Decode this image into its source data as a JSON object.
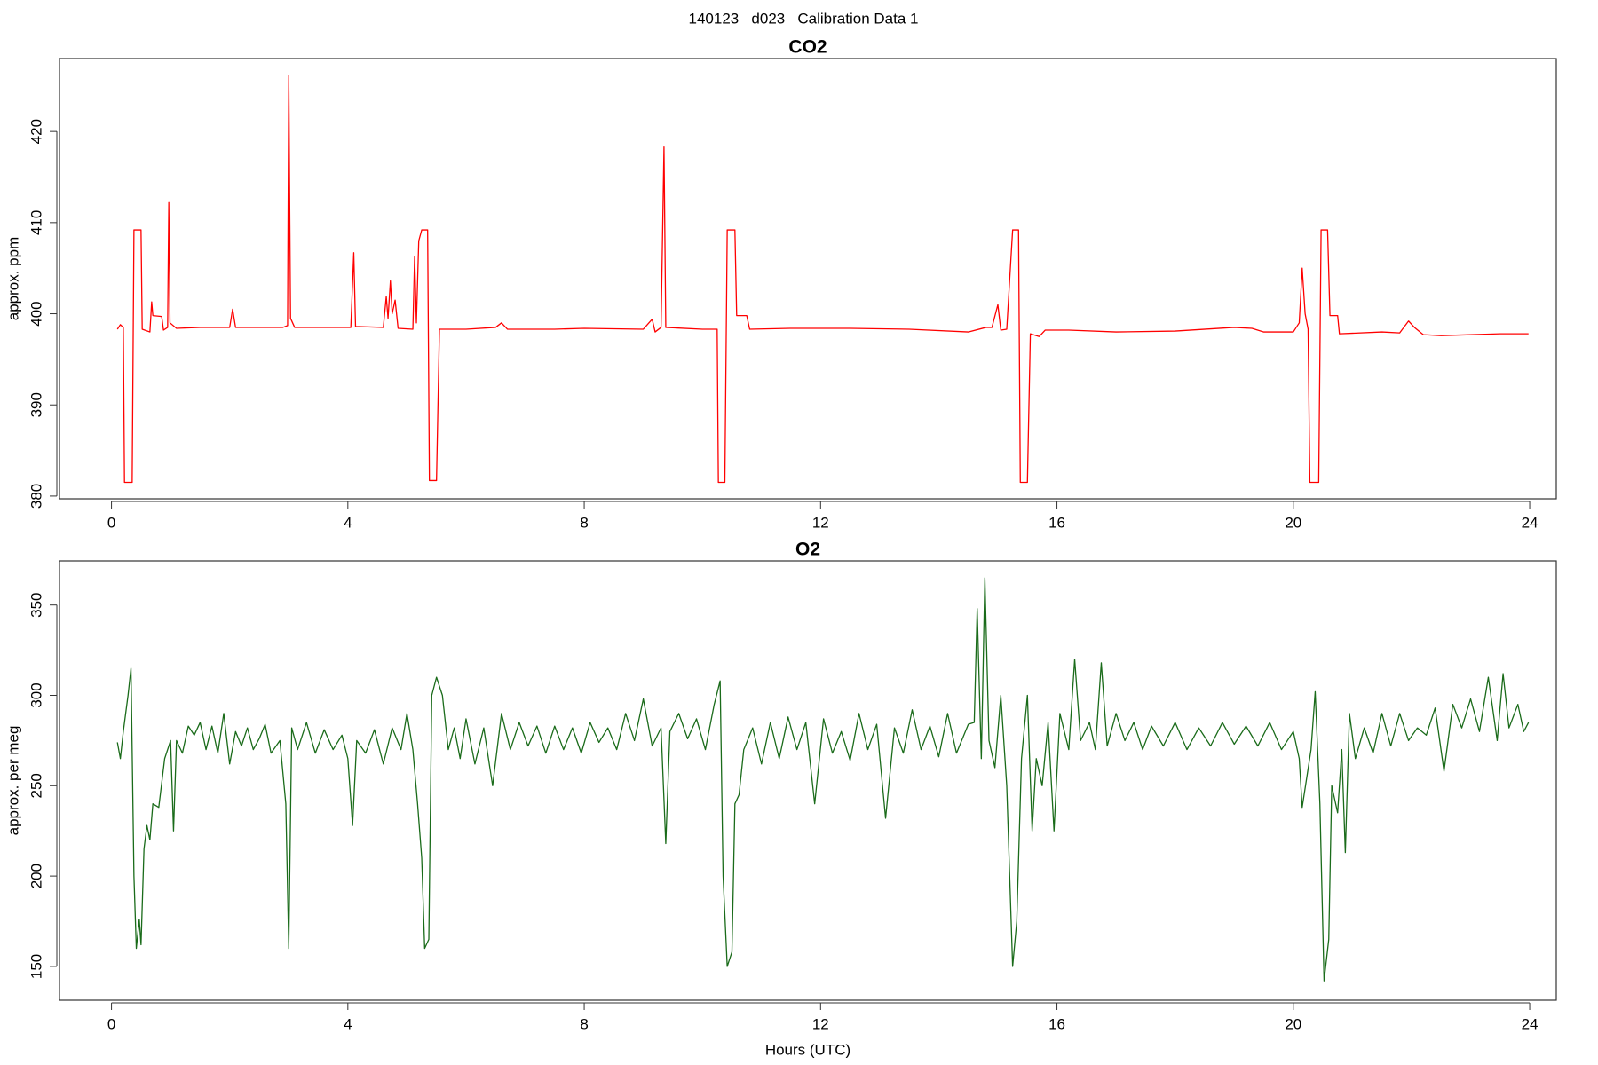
{
  "title": "140123   d023   Calibration Data 1",
  "chart_data": [
    {
      "type": "line",
      "title": "CO2",
      "ylabel": "approx. ppm",
      "color": "#ff0000",
      "xlim": [
        -0.88,
        24.45
      ],
      "ylim": [
        379.7,
        428.0
      ],
      "xticks": [
        0,
        4,
        8,
        12,
        16,
        20,
        24
      ],
      "yticks": [
        380,
        390,
        400,
        410,
        420
      ],
      "x": [
        0.1,
        0.15,
        0.2,
        0.22,
        0.35,
        0.38,
        0.5,
        0.52,
        0.65,
        0.68,
        0.7,
        0.85,
        0.88,
        0.95,
        0.97,
        0.99,
        1.1,
        1.5,
        2.0,
        2.05,
        2.1,
        2.9,
        2.98,
        3.0,
        3.03,
        3.1,
        4.05,
        4.1,
        4.13,
        4.6,
        4.65,
        4.68,
        4.72,
        4.75,
        4.8,
        4.85,
        5.1,
        5.13,
        5.16,
        5.2,
        5.25,
        5.35,
        5.38,
        5.5,
        5.55,
        6.0,
        6.5,
        6.6,
        6.7,
        7.5,
        8.0,
        9.0,
        9.15,
        9.2,
        9.3,
        9.35,
        9.38,
        10.0,
        10.25,
        10.27,
        10.38,
        10.42,
        10.55,
        10.58,
        10.75,
        10.8,
        11.5,
        12.5,
        13.5,
        14.5,
        14.8,
        14.9,
        15.0,
        15.05,
        15.15,
        15.25,
        15.35,
        15.38,
        15.5,
        15.55,
        15.7,
        15.8,
        16.2,
        17,
        18,
        19,
        19.3,
        19.5,
        20.0,
        20.1,
        20.15,
        20.2,
        20.25,
        20.28,
        20.43,
        20.47,
        20.58,
        20.62,
        20.75,
        20.78,
        21.5,
        21.8,
        21.95,
        22.05,
        22.2,
        22.5,
        23.0,
        23.5,
        23.98
      ],
      "values": [
        398.3,
        398.8,
        398.5,
        381.5,
        381.5,
        409.2,
        409.2,
        398.3,
        398.0,
        401.3,
        399.8,
        399.7,
        398.2,
        398.5,
        412.2,
        399.0,
        398.4,
        398.5,
        398.5,
        400.5,
        398.5,
        398.5,
        398.7,
        426.2,
        399.5,
        398.5,
        398.5,
        406.7,
        398.6,
        398.5,
        401.9,
        399.5,
        403.6,
        400,
        401.5,
        398.4,
        398.3,
        406.3,
        399,
        408,
        409.2,
        409.2,
        381.7,
        381.7,
        398.3,
        398.3,
        398.5,
        399.0,
        398.3,
        398.3,
        398.4,
        398.3,
        399.4,
        398.0,
        398.5,
        418.3,
        398.5,
        398.3,
        398.3,
        381.5,
        381.5,
        409.2,
        409.2,
        399.8,
        399.8,
        398.3,
        398.4,
        398.4,
        398.3,
        398.0,
        398.5,
        398.5,
        401.0,
        398.2,
        398.3,
        409.2,
        409.2,
        381.5,
        381.5,
        397.8,
        397.5,
        398.2,
        398.2,
        398.0,
        398.1,
        398.5,
        398.4,
        398.0,
        398.0,
        399.0,
        405.0,
        400,
        398.3,
        381.5,
        381.5,
        409.2,
        409.2,
        399.8,
        399.8,
        397.8,
        398.0,
        397.9,
        399.2,
        398.5,
        397.7,
        397.6,
        397.7,
        397.8,
        397.8
      ]
    },
    {
      "type": "line",
      "title": "O2",
      "ylabel": "approx. per meg",
      "xlabel": "Hours (UTC)",
      "color": "#1a6b1a",
      "xlim": [
        -0.88,
        24.45
      ],
      "ylim": [
        131.3,
        374.4
      ],
      "xticks": [
        0,
        4,
        8,
        12,
        16,
        20,
        24
      ],
      "yticks": [
        150,
        200,
        250,
        300,
        350
      ],
      "x": [
        0.1,
        0.15,
        0.2,
        0.28,
        0.33,
        0.38,
        0.42,
        0.47,
        0.5,
        0.55,
        0.6,
        0.65,
        0.7,
        0.8,
        0.9,
        1.0,
        1.05,
        1.1,
        1.2,
        1.3,
        1.4,
        1.5,
        1.6,
        1.7,
        1.8,
        1.9,
        2.0,
        2.1,
        2.2,
        2.3,
        2.4,
        2.5,
        2.6,
        2.7,
        2.85,
        2.95,
        3.0,
        3.05,
        3.15,
        3.3,
        3.45,
        3.6,
        3.75,
        3.9,
        4.0,
        4.08,
        4.15,
        4.3,
        4.45,
        4.6,
        4.75,
        4.9,
        5.0,
        5.1,
        5.18,
        5.25,
        5.3,
        5.37,
        5.42,
        5.5,
        5.6,
        5.7,
        5.8,
        5.9,
        6.0,
        6.15,
        6.3,
        6.45,
        6.6,
        6.75,
        6.9,
        7.05,
        7.2,
        7.35,
        7.5,
        7.65,
        7.8,
        7.95,
        8.1,
        8.25,
        8.4,
        8.55,
        8.7,
        8.85,
        9.0,
        9.15,
        9.3,
        9.38,
        9.45,
        9.6,
        9.75,
        9.9,
        10.05,
        10.2,
        10.3,
        10.35,
        10.42,
        10.5,
        10.55,
        10.62,
        10.7,
        10.85,
        11.0,
        11.15,
        11.3,
        11.45,
        11.6,
        11.75,
        11.9,
        12.05,
        12.2,
        12.35,
        12.5,
        12.65,
        12.8,
        12.95,
        13.1,
        13.25,
        13.4,
        13.55,
        13.7,
        13.85,
        14.0,
        14.15,
        14.3,
        14.5,
        14.6,
        14.65,
        14.72,
        14.78,
        14.85,
        14.95,
        15.05,
        15.15,
        15.25,
        15.32,
        15.4,
        15.5,
        15.58,
        15.65,
        15.75,
        15.85,
        15.95,
        16.05,
        16.2,
        16.3,
        16.4,
        16.55,
        16.65,
        16.75,
        16.85,
        17.0,
        17.15,
        17.3,
        17.45,
        17.6,
        17.8,
        18.0,
        18.2,
        18.4,
        18.6,
        18.8,
        19.0,
        19.2,
        19.4,
        19.6,
        19.8,
        20.0,
        20.1,
        20.15,
        20.3,
        20.37,
        20.45,
        20.52,
        20.6,
        20.65,
        20.75,
        20.82,
        20.88,
        20.95,
        21.05,
        21.2,
        21.35,
        21.5,
        21.65,
        21.8,
        21.95,
        22.1,
        22.25,
        22.4,
        22.55,
        22.7,
        22.85,
        23.0,
        23.15,
        23.3,
        23.45,
        23.55,
        23.65,
        23.8,
        23.9,
        23.98
      ],
      "values": [
        274,
        265,
        280,
        300,
        315,
        200,
        160,
        176,
        162,
        215,
        228,
        220,
        240,
        238,
        265,
        275,
        225,
        275,
        268,
        283,
        278,
        285,
        270,
        283,
        268,
        290,
        262,
        280,
        272,
        282,
        270,
        276,
        284,
        268,
        275,
        240,
        160,
        282,
        270,
        285,
        268,
        281,
        270,
        278,
        265,
        228,
        275,
        268,
        281,
        262,
        282,
        270,
        290,
        270,
        240,
        210,
        160,
        165,
        300,
        310,
        300,
        270,
        282,
        265,
        287,
        262,
        282,
        250,
        290,
        270,
        285,
        272,
        283,
        268,
        283,
        270,
        282,
        268,
        285,
        274,
        282,
        270,
        290,
        275,
        298,
        272,
        282,
        218,
        280,
        290,
        276,
        287,
        270,
        295,
        308,
        200,
        150,
        158,
        240,
        245,
        270,
        282,
        262,
        285,
        265,
        288,
        270,
        285,
        240,
        287,
        268,
        280,
        264,
        290,
        270,
        284,
        232,
        282,
        268,
        292,
        270,
        283,
        266,
        290,
        268,
        284,
        285,
        348,
        265,
        365,
        275,
        260,
        300,
        250,
        150,
        175,
        265,
        300,
        225,
        265,
        250,
        285,
        225,
        290,
        270,
        320,
        275,
        285,
        270,
        318,
        272,
        290,
        275,
        285,
        270,
        283,
        272,
        285,
        270,
        282,
        272,
        285,
        273,
        283,
        272,
        285,
        270,
        280,
        265,
        238,
        270,
        302,
        240,
        142,
        165,
        250,
        235,
        270,
        213,
        290,
        265,
        282,
        268,
        290,
        272,
        290,
        275,
        282,
        278,
        293,
        258,
        295,
        282,
        298,
        280,
        310,
        275,
        312,
        282,
        295,
        280,
        285
      ]
    }
  ]
}
